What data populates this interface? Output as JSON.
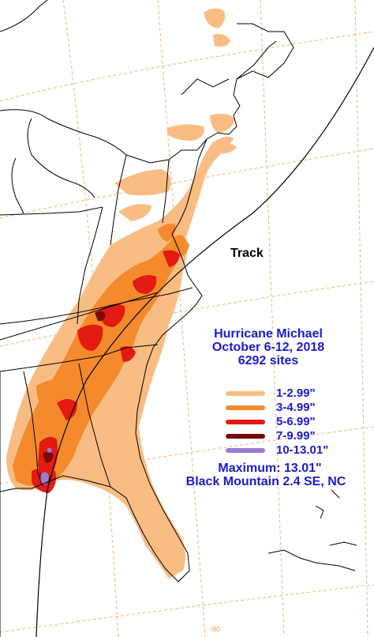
{
  "map": {
    "title_lines": [
      "Hurricane Michael",
      "October 6-12, 2018",
      "6292 sites"
    ],
    "track_label": "Track",
    "legend": [
      {
        "label": "1-2.99\"",
        "color": "#f9bd84"
      },
      {
        "label": "3-4.99\"",
        "color": "#f48a2c"
      },
      {
        "label": "5-6.99\"",
        "color": "#e21a12"
      },
      {
        "label": "7-9.99\"",
        "color": "#7a0a0a"
      },
      {
        "label": "10-13.01\"",
        "color": "#9b7cd4"
      }
    ],
    "maximum_line": "Maximum: 13.01\"",
    "location_line": "Black Mountain 2.4 SE, NC",
    "longitude_label": "-80",
    "colors": {
      "text": "#1a1ad6",
      "grid": "#f4b27a",
      "outline": "#000000"
    }
  }
}
